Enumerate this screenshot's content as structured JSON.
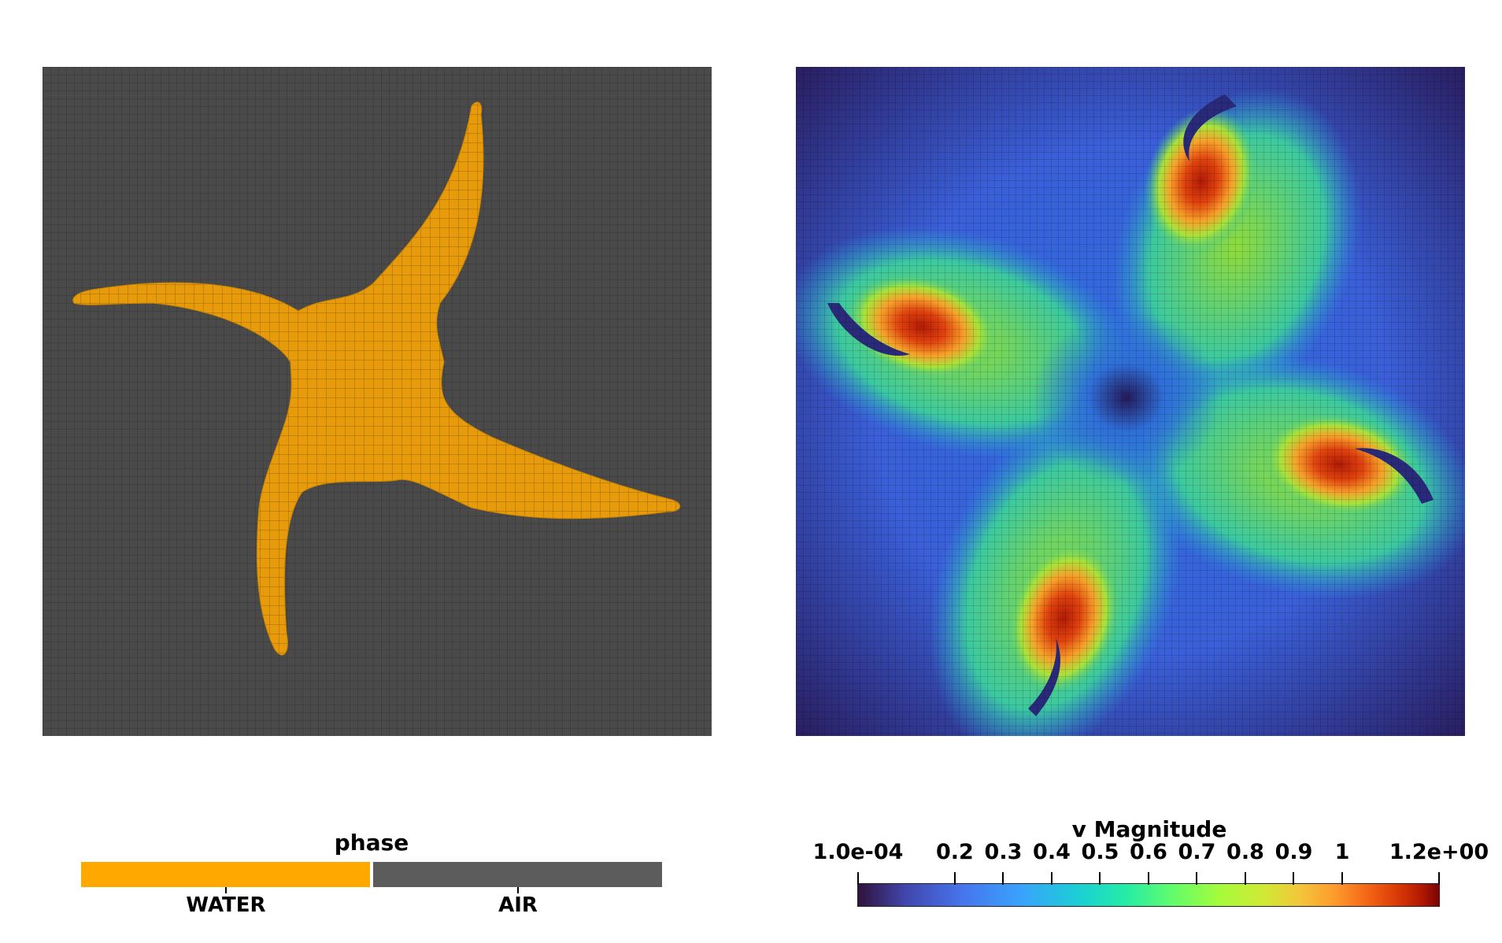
{
  "left_panel": {
    "legend": {
      "title": "phase",
      "categories": [
        {
          "label": "WATER",
          "color": "#ffa800"
        },
        {
          "label": "AIR",
          "color": "#5c5c5c"
        }
      ]
    },
    "colors": {
      "background_cells": "#4a4a4a",
      "mesh_lines": "#2f2f2f",
      "water": "#e89b0a"
    }
  },
  "right_panel": {
    "colorbar": {
      "title": "v Magnitude",
      "colormap": "turbo",
      "range": [
        0.0001,
        1.2
      ],
      "ticks": [
        "1.0e-04",
        "0.2",
        "0.3",
        "0.4",
        "0.5",
        "0.6",
        "0.7",
        "0.8",
        "0.9",
        "1",
        "1.2e+00"
      ],
      "tick_values": [
        0.0001,
        0.2,
        0.3,
        0.4,
        0.5,
        0.6,
        0.7,
        0.8,
        0.9,
        1.0,
        1.2
      ]
    }
  }
}
